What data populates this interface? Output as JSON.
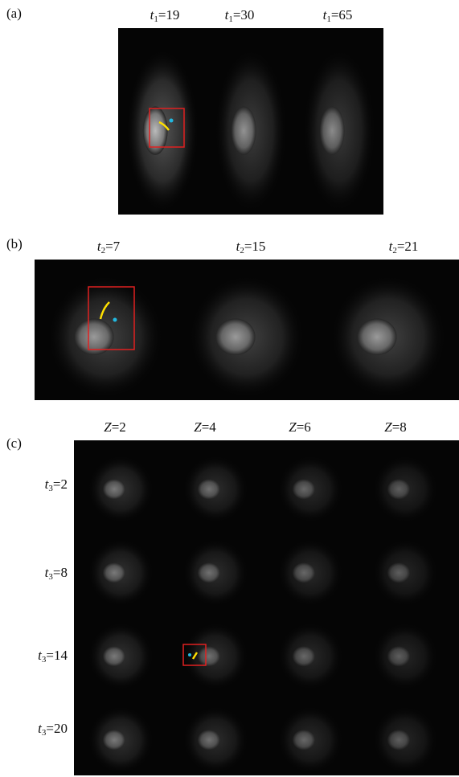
{
  "panels": [
    {
      "label": "(a)",
      "columns": [
        {
          "symbol": "t",
          "sub": "1",
          "text": "=19"
        },
        {
          "symbol": "t",
          "sub": "1",
          "text": "=30"
        },
        {
          "symbol": "t",
          "sub": "1",
          "text": "=65"
        }
      ]
    },
    {
      "label": "(b)",
      "columns": [
        {
          "symbol": "t",
          "sub": "2",
          "text": "=7"
        },
        {
          "symbol": "t",
          "sub": "2",
          "text": "=15"
        },
        {
          "symbol": "t",
          "sub": "2",
          "text": "=21"
        }
      ]
    },
    {
      "label": "(c)",
      "columns": [
        {
          "symbol": "Z",
          "text": "=2"
        },
        {
          "symbol": "Z",
          "text": "=4"
        },
        {
          "symbol": "Z",
          "text": "=6"
        },
        {
          "symbol": "Z",
          "text": "=8"
        }
      ],
      "rows": [
        {
          "symbol": "t",
          "sub": "3",
          "text": "=2"
        },
        {
          "symbol": "t",
          "sub": "3",
          "text": "=8"
        },
        {
          "symbol": "t",
          "sub": "3",
          "text": "=14"
        },
        {
          "symbol": "t",
          "sub": "3",
          "text": "=20"
        }
      ]
    }
  ]
}
